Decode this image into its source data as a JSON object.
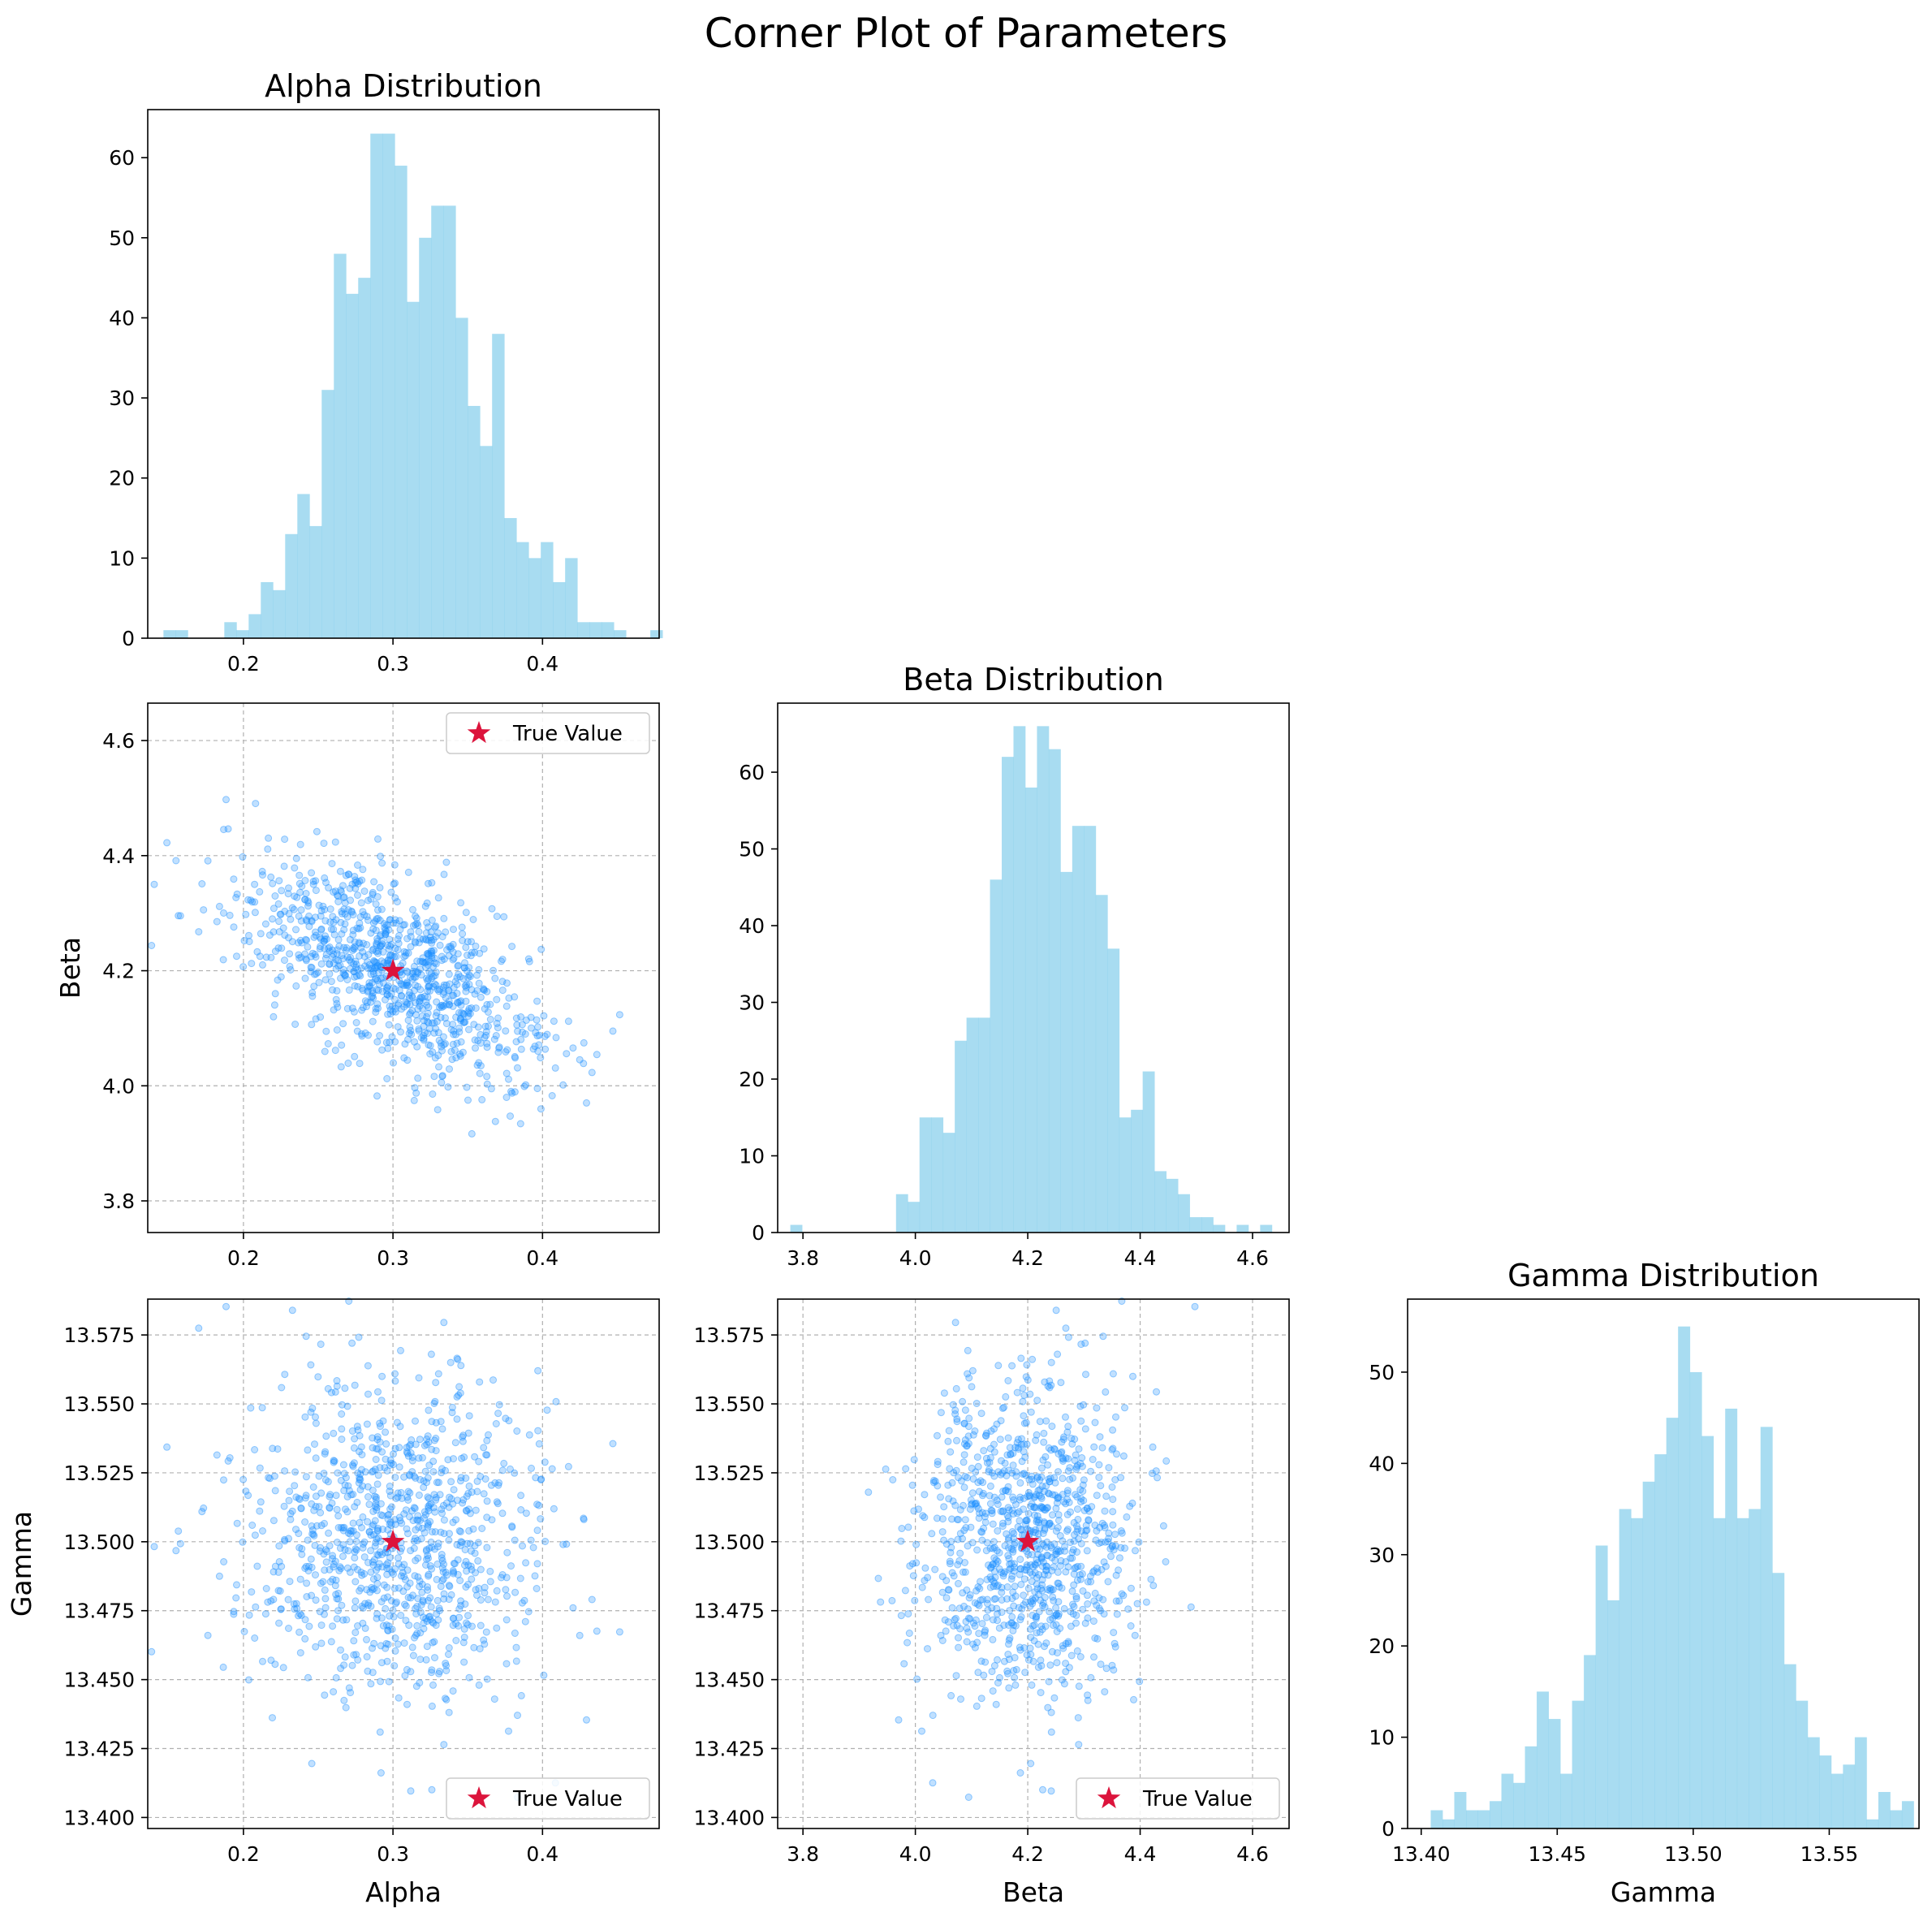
{
  "figure_title": "Corner Plot of Parameters",
  "colors": {
    "histogram": "#87CEEB",
    "scatter": "#1E90FF",
    "true_value": "#DC143C",
    "grid": "#b0b0b0"
  },
  "chart_data": [
    {
      "id": "alpha-hist",
      "type": "bar",
      "title": "Alpha Distribution",
      "xlabel": "",
      "ylabel": "",
      "grid": false,
      "xlim": [
        0.136,
        0.478
      ],
      "ylim": [
        0,
        66
      ],
      "xticks": [
        "0.2",
        "0.3",
        "0.4"
      ],
      "yticks": [
        "0",
        "10",
        "20",
        "30",
        "40",
        "50",
        "60"
      ],
      "bin_start": 0.1465,
      "bin_width": 0.00814,
      "values": [
        1,
        1,
        0,
        0,
        0,
        2,
        1,
        3,
        7,
        6,
        13,
        18,
        14,
        31,
        48,
        43,
        45,
        63,
        63,
        59,
        42,
        50,
        54,
        54,
        40,
        29,
        24,
        38,
        15,
        12,
        10,
        12,
        7,
        10,
        2,
        2,
        2,
        1,
        0,
        0,
        1
      ]
    },
    {
      "id": "beta-hist",
      "type": "bar",
      "title": "Beta Distribution",
      "xlabel": "",
      "ylabel": "",
      "grid": false,
      "xlim": [
        3.755,
        4.665
      ],
      "ylim": [
        0,
        69
      ],
      "xticks": [
        "3.8",
        "4.0",
        "4.2",
        "4.4",
        "4.6"
      ],
      "yticks": [
        "0",
        "10",
        "20",
        "30",
        "40",
        "50",
        "60"
      ],
      "bin_start": 3.7775,
      "bin_width": 0.0209,
      "values": [
        1,
        0,
        0,
        0,
        0,
        0,
        0,
        0,
        0,
        5,
        4,
        15,
        15,
        13,
        25,
        28,
        28,
        46,
        62,
        66,
        58,
        66,
        63,
        47,
        53,
        53,
        44,
        37,
        15,
        16,
        21,
        8,
        7,
        5,
        2,
        2,
        1,
        0,
        1,
        0,
        1
      ]
    },
    {
      "id": "gamma-hist",
      "type": "bar",
      "title": "Gamma Distribution",
      "xlabel": "Gamma",
      "ylabel": "",
      "grid": false,
      "xlim": [
        13.395,
        13.583
      ],
      "ylim": [
        0,
        58
      ],
      "xticks": [
        "13.40",
        "13.45",
        "13.50",
        "13.55"
      ],
      "yticks": [
        "0",
        "10",
        "20",
        "30",
        "40",
        "50"
      ],
      "bin_start": 13.4035,
      "bin_width": 0.00433,
      "values": [
        2,
        1,
        4,
        2,
        2,
        3,
        6,
        5,
        9,
        15,
        12,
        6,
        14,
        19,
        31,
        25,
        35,
        34,
        38,
        41,
        45,
        55,
        50,
        43,
        34,
        46,
        34,
        35,
        44,
        28,
        18,
        14,
        10,
        8,
        6,
        7,
        10,
        1,
        4,
        2,
        3
      ]
    },
    {
      "id": "alpha-beta-scatter",
      "type": "scatter",
      "title": "",
      "xlabel": "",
      "ylabel": "Beta",
      "grid": true,
      "xlim": [
        0.136,
        0.478
      ],
      "ylim": [
        3.745,
        4.665
      ],
      "xticks": [
        "0.2",
        "0.3",
        "0.4"
      ],
      "yticks": [
        "3.8",
        "4.0",
        "4.2",
        "4.4",
        "4.6"
      ],
      "legend": "True Value",
      "legend_loc": "upper right",
      "true_value": [
        0.3,
        4.2
      ]
    },
    {
      "id": "alpha-gamma-scatter",
      "type": "scatter",
      "title": "",
      "xlabel": "Alpha",
      "ylabel": "Gamma",
      "grid": true,
      "xlim": [
        0.136,
        0.478
      ],
      "ylim": [
        13.396,
        13.588
      ],
      "xticks": [
        "0.2",
        "0.3",
        "0.4"
      ],
      "yticks": [
        "13.400",
        "13.425",
        "13.450",
        "13.475",
        "13.500",
        "13.525",
        "13.550",
        "13.575"
      ],
      "legend": "True Value",
      "legend_loc": "lower right",
      "true_value": [
        0.3,
        13.5
      ]
    },
    {
      "id": "beta-gamma-scatter",
      "type": "scatter",
      "title": "",
      "xlabel": "Beta",
      "ylabel": "",
      "grid": true,
      "xlim": [
        3.755,
        4.665
      ],
      "ylim": [
        13.396,
        13.588
      ],
      "xticks": [
        "3.8",
        "4.0",
        "4.2",
        "4.4",
        "4.6"
      ],
      "yticks": [
        "13.400",
        "13.425",
        "13.450",
        "13.475",
        "13.500",
        "13.525",
        "13.550",
        "13.575"
      ],
      "legend": "True Value",
      "legend_loc": "lower right",
      "true_value": [
        4.2,
        13.5
      ]
    }
  ]
}
